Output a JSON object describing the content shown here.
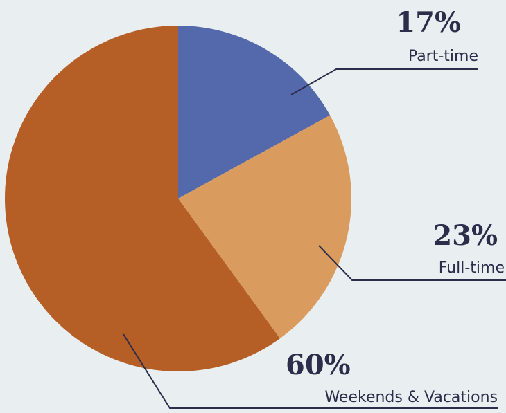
{
  "chart_data": {
    "type": "pie",
    "categories": [
      "Part-time",
      "Full-time",
      "Weekends & Vacations"
    ],
    "values": [
      17,
      23,
      60
    ],
    "value_labels": [
      "17%",
      "23%",
      "60%"
    ],
    "colors": [
      "#5469ab",
      "#d99c5e",
      "#b55e25"
    ]
  }
}
